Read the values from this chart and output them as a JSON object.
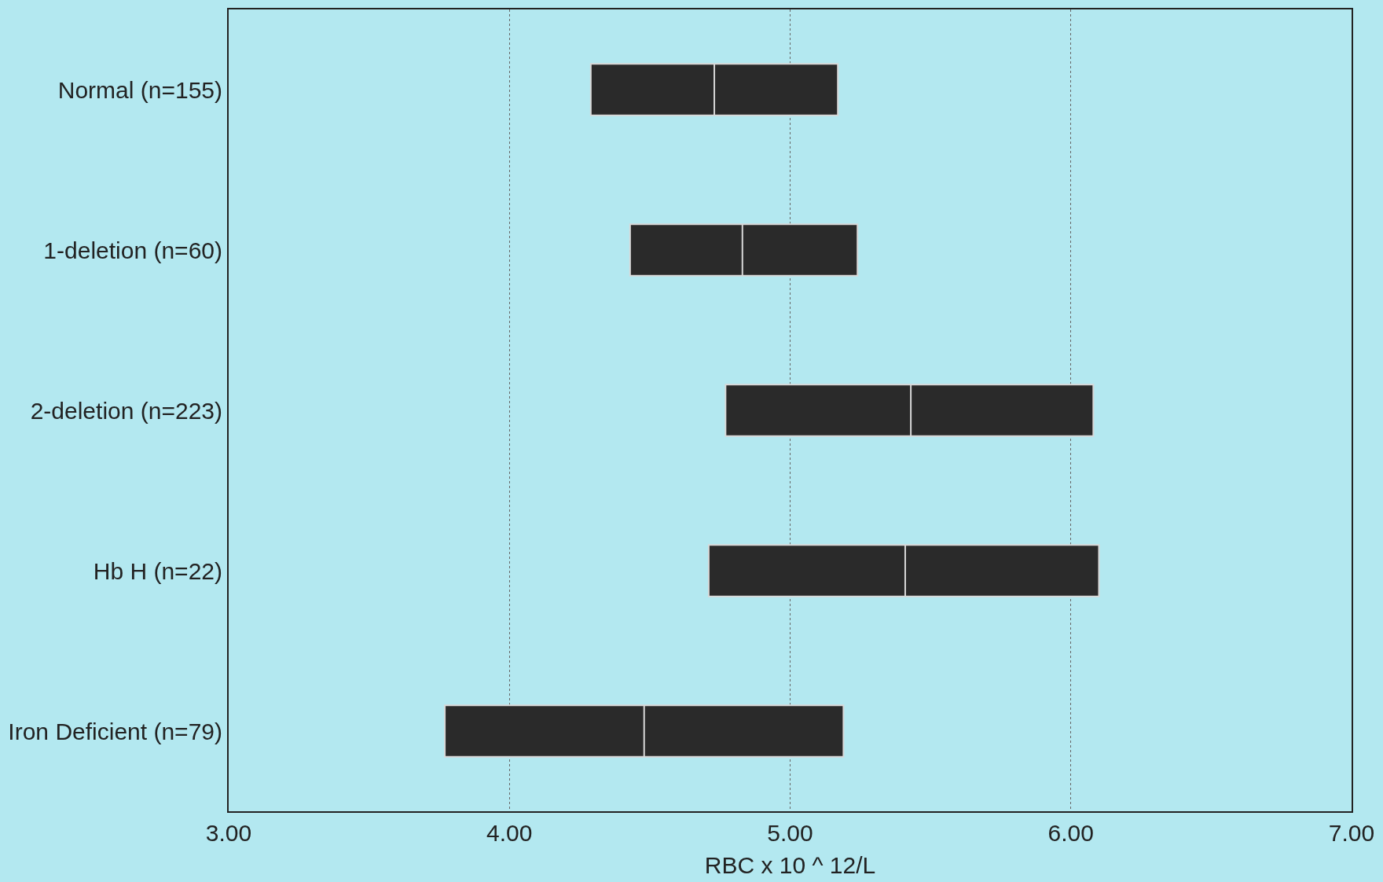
{
  "chart_data": {
    "type": "box",
    "orientation": "horizontal",
    "xlabel": "RBC x 10 ^ 12/L",
    "categories": [
      "Normal (n=155)",
      "1-deletion (n=60)",
      "2-deletion (n=223)",
      "Hb H (n=22)",
      "Iron Deficient (n=79)"
    ],
    "series": [
      {
        "color": "#2a2a2a",
        "boxes": [
          {
            "low": 4.29,
            "q1": 4.29,
            "median": 4.73,
            "q3": 5.17,
            "high": 5.17
          },
          {
            "low": 4.43,
            "q1": 4.43,
            "median": 4.83,
            "q3": 5.24,
            "high": 5.24
          },
          {
            "low": 4.77,
            "q1": 4.77,
            "median": 5.43,
            "q3": 6.08,
            "high": 6.08
          },
          {
            "low": 4.71,
            "q1": 4.71,
            "median": 5.41,
            "q3": 6.1,
            "high": 6.1
          },
          {
            "low": 3.77,
            "q1": 3.77,
            "median": 4.48,
            "q3": 5.19,
            "high": 5.19
          }
        ]
      }
    ],
    "xlim": [
      3,
      7
    ],
    "xticks": [
      {
        "value": 3,
        "label": "3.00"
      },
      {
        "value": 4,
        "label": "4.00"
      },
      {
        "value": 5,
        "label": "5.00"
      },
      {
        "value": 6,
        "label": "6.00"
      },
      {
        "value": 7,
        "label": "7.00"
      }
    ],
    "grid": "x"
  }
}
